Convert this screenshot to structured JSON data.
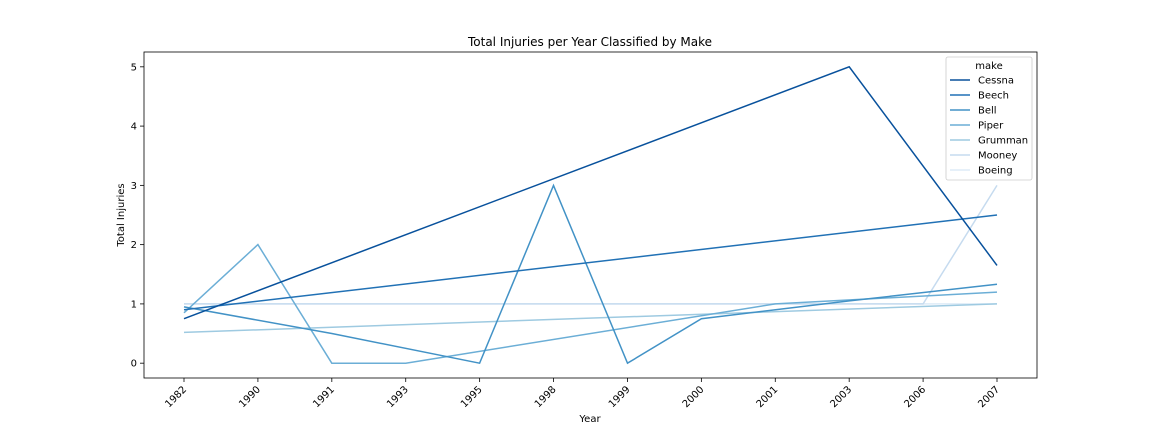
{
  "chart_data": {
    "type": "line",
    "title": "Total Injuries per Year Classified by Make",
    "xlabel": "Year",
    "ylabel": "Total Injuries",
    "categories": [
      "1982",
      "1990",
      "1991",
      "1993",
      "1995",
      "1998",
      "1999",
      "2000",
      "2001",
      "2003",
      "2006",
      "2007"
    ],
    "ylim": [
      -0.25,
      5.25
    ],
    "yticks": [
      0,
      1,
      2,
      3,
      4,
      5
    ],
    "grid": false,
    "legend": {
      "title": "make",
      "placement": "top-right"
    },
    "series": [
      {
        "name": "Cessna",
        "color": "#08519c",
        "points": [
          {
            "x": "1982",
            "y": 0.75
          },
          {
            "x": "2003",
            "y": 5.0
          },
          {
            "x": "2007",
            "y": 1.65
          }
        ]
      },
      {
        "name": "Beech",
        "color": "#2171b5",
        "points": [
          {
            "x": "1982",
            "y": 0.9
          },
          {
            "x": "2007",
            "y": 2.5
          }
        ]
      },
      {
        "name": "Bell",
        "color": "#4292c6",
        "points": [
          {
            "x": "1982",
            "y": 0.95
          },
          {
            "x": "1991",
            "y": 0.5
          },
          {
            "x": "1995",
            "y": 0.0
          },
          {
            "x": "1998",
            "y": 3.0
          },
          {
            "x": "1999",
            "y": 0.0
          },
          {
            "x": "2000",
            "y": 0.75
          },
          {
            "x": "2003",
            "y": 1.05
          },
          {
            "x": "2007",
            "y": 1.33
          }
        ]
      },
      {
        "name": "Piper",
        "color": "#6baed6",
        "points": [
          {
            "x": "1982",
            "y": 0.85
          },
          {
            "x": "1990",
            "y": 2.0
          },
          {
            "x": "1991",
            "y": 0.0
          },
          {
            "x": "1993",
            "y": 0.0
          },
          {
            "x": "2001",
            "y": 1.0
          },
          {
            "x": "2007",
            "y": 1.2
          }
        ]
      },
      {
        "name": "Grumman",
        "color": "#9ecae1",
        "points": [
          {
            "x": "1982",
            "y": 0.52
          },
          {
            "x": "2007",
            "y": 1.0
          }
        ]
      },
      {
        "name": "Mooney",
        "color": "#c6dbef",
        "points": [
          {
            "x": "1982",
            "y": 1.0
          },
          {
            "x": "2006",
            "y": 1.0
          },
          {
            "x": "2007",
            "y": 3.0
          }
        ]
      },
      {
        "name": "Boeing",
        "color": "#deebf7",
        "points": [
          {
            "x": "1982",
            "y": 1.0
          },
          {
            "x": "2007",
            "y": 1.0
          }
        ]
      }
    ]
  }
}
